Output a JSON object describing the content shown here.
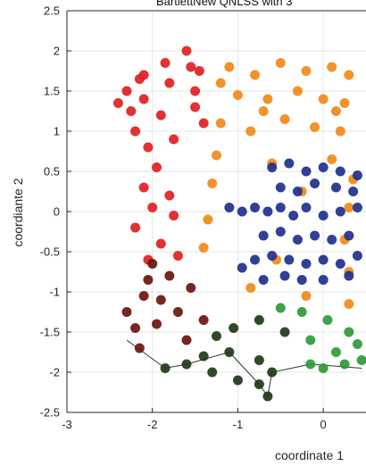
{
  "chart_data": {
    "type": "scatter",
    "title": "BartlettNew QNLSS with 3",
    "xlabel": "coordinate 1",
    "ylabel": "coordiante 2",
    "xlim": [
      -3,
      0.5
    ],
    "ylim": [
      -2.5,
      2.5
    ],
    "x_ticks": [
      -3,
      -2,
      -1,
      0
    ],
    "y_ticks": [
      -2.5,
      -2,
      -1.5,
      -1,
      -0.5,
      0,
      0.5,
      1,
      1.5,
      2,
      2.5
    ],
    "x_tick_labels": [
      "-3",
      "-2",
      "-1",
      "0"
    ],
    "y_tick_labels": [
      "-2.5",
      "-2",
      "-1.5",
      "-1",
      "-0.5",
      "0",
      "0.5",
      "1",
      "1.5",
      "2",
      "2.5"
    ],
    "grid": true,
    "colors": {
      "red": "#e02020",
      "orange": "#f08a18",
      "dark_red": "#6a1410",
      "dark_green": "#1e3a16",
      "green": "#2f9a38",
      "navy": "#1f2f8c",
      "outline": "#333333"
    },
    "series": [
      {
        "color": "#e02020",
        "points": [
          [
            -1.6,
            2
          ],
          [
            -1.85,
            1.85
          ],
          [
            -2.1,
            1.7
          ],
          [
            -2.3,
            1.5
          ],
          [
            -2.1,
            1.4
          ],
          [
            -1.8,
            1.6
          ],
          [
            -1.5,
            1.5
          ],
          [
            -1.9,
            1.2
          ],
          [
            -2.2,
            1.0
          ],
          [
            -2.05,
            0.8
          ],
          [
            -1.75,
            0.9
          ],
          [
            -1.4,
            1.1
          ],
          [
            -1.55,
            1.8
          ],
          [
            -2.25,
            1.25
          ],
          [
            -1.95,
            0.55
          ],
          [
            -2.1,
            0.3
          ],
          [
            -1.8,
            0.2
          ],
          [
            -2.0,
            0.05
          ],
          [
            -2.2,
            -0.2
          ],
          [
            -1.75,
            -0.05
          ],
          [
            -1.9,
            -0.4
          ],
          [
            -2.05,
            -0.6
          ],
          [
            -1.7,
            -0.55
          ],
          [
            -1.5,
            1.3
          ],
          [
            -2.4,
            1.35
          ],
          [
            -1.45,
            1.75
          ],
          [
            -2.15,
            1.65
          ]
        ]
      },
      {
        "color": "#f08a18",
        "points": [
          [
            -1.1,
            1.8
          ],
          [
            -0.8,
            1.7
          ],
          [
            -0.5,
            1.85
          ],
          [
            -0.2,
            1.75
          ],
          [
            0.1,
            1.8
          ],
          [
            0.3,
            1.7
          ],
          [
            -1.0,
            1.45
          ],
          [
            -0.65,
            1.4
          ],
          [
            -0.3,
            1.5
          ],
          [
            0.0,
            1.4
          ],
          [
            0.25,
            1.35
          ],
          [
            -1.2,
            1.1
          ],
          [
            -0.85,
            1.0
          ],
          [
            -0.45,
            1.15
          ],
          [
            -0.1,
            1.05
          ],
          [
            0.2,
            1.0
          ],
          [
            -1.25,
            0.7
          ],
          [
            -0.6,
            0.6
          ],
          [
            0.1,
            0.65
          ],
          [
            0.35,
            0.4
          ],
          [
            -1.3,
            0.35
          ],
          [
            -0.25,
            0.25
          ],
          [
            0.3,
            0.05
          ],
          [
            -1.35,
            -0.1
          ],
          [
            0.25,
            -0.35
          ],
          [
            -0.55,
            -0.6
          ],
          [
            0.3,
            -0.75
          ],
          [
            -1.4,
            -0.45
          ],
          [
            -0.85,
            -0.95
          ],
          [
            -0.2,
            -1.05
          ],
          [
            0.3,
            -1.15
          ],
          [
            -1.2,
            1.6
          ],
          [
            -0.7,
            1.25
          ],
          [
            0.15,
            1.25
          ]
        ]
      },
      {
        "color": "#6a1410",
        "points": [
          [
            -2.3,
            -1.25
          ],
          [
            -2.1,
            -1.05
          ],
          [
            -1.9,
            -1.1
          ],
          [
            -2.2,
            -1.45
          ],
          [
            -1.95,
            -1.4
          ],
          [
            -1.7,
            -1.25
          ],
          [
            -1.55,
            -0.95
          ],
          [
            -1.8,
            -0.8
          ],
          [
            -2.05,
            -0.85
          ],
          [
            -2.15,
            -1.7
          ],
          [
            -1.6,
            -1.6
          ],
          [
            -1.4,
            -1.35
          ],
          [
            -2.0,
            -0.65
          ]
        ]
      },
      {
        "color": "#1e3a16",
        "points": [
          [
            -1.85,
            -1.95
          ],
          [
            -1.6,
            -1.9
          ],
          [
            -1.4,
            -1.8
          ],
          [
            -1.1,
            -1.75
          ],
          [
            -1.0,
            -2.1
          ],
          [
            -0.75,
            -2.15
          ],
          [
            -0.6,
            -2.0
          ],
          [
            -0.75,
            -1.85
          ],
          [
            -1.25,
            -1.55
          ],
          [
            -1.05,
            -1.45
          ],
          [
            -0.75,
            -1.35
          ],
          [
            -0.45,
            -1.5
          ],
          [
            -1.3,
            -2.0
          ],
          [
            -0.65,
            -2.3
          ]
        ]
      },
      {
        "color": "#2f9a38",
        "points": [
          [
            -0.25,
            -1.25
          ],
          [
            0.05,
            -1.35
          ],
          [
            0.3,
            -1.5
          ],
          [
            -0.15,
            -1.6
          ],
          [
            0.15,
            -1.75
          ],
          [
            0.4,
            -1.65
          ],
          [
            -0.5,
            -1.2
          ],
          [
            0.0,
            -1.95
          ],
          [
            0.25,
            -1.9
          ],
          [
            -0.15,
            -1.9
          ],
          [
            0.45,
            -1.85
          ]
        ]
      },
      {
        "color": "#1f2f8c",
        "points": [
          [
            -0.6,
            0.55
          ],
          [
            -0.4,
            0.6
          ],
          [
            -0.2,
            0.5
          ],
          [
            0.0,
            0.55
          ],
          [
            0.2,
            0.5
          ],
          [
            0.4,
            0.45
          ],
          [
            -0.5,
            0.3
          ],
          [
            -0.3,
            0.25
          ],
          [
            -0.1,
            0.35
          ],
          [
            0.15,
            0.3
          ],
          [
            0.35,
            0.25
          ],
          [
            -1.1,
            0.05
          ],
          [
            -0.95,
            0.0
          ],
          [
            -0.8,
            0.05
          ],
          [
            -0.65,
            0.0
          ],
          [
            -0.5,
            0.05
          ],
          [
            -0.35,
            -0.05
          ],
          [
            -0.2,
            0.05
          ],
          [
            0.0,
            -0.05
          ],
          [
            0.2,
            0.0
          ],
          [
            0.4,
            0.05
          ],
          [
            -0.7,
            -0.3
          ],
          [
            -0.5,
            -0.25
          ],
          [
            -0.3,
            -0.35
          ],
          [
            -0.1,
            -0.3
          ],
          [
            0.1,
            -0.35
          ],
          [
            0.3,
            -0.3
          ],
          [
            -0.8,
            -0.6
          ],
          [
            -0.6,
            -0.55
          ],
          [
            -0.4,
            -0.6
          ],
          [
            -0.2,
            -0.65
          ],
          [
            0.0,
            -0.6
          ],
          [
            0.2,
            -0.65
          ],
          [
            0.4,
            -0.55
          ],
          [
            -0.7,
            -0.85
          ],
          [
            -0.45,
            -0.8
          ],
          [
            -0.25,
            -0.85
          ],
          [
            0.0,
            -0.85
          ],
          [
            0.3,
            -0.8
          ],
          [
            -0.95,
            -0.7
          ]
        ]
      }
    ],
    "outline_points": [
      [
        -2.3,
        -1.6
      ],
      [
        -1.85,
        -1.95
      ],
      [
        -1.6,
        -1.9
      ],
      [
        -1.1,
        -1.75
      ],
      [
        -0.75,
        -2.15
      ],
      [
        -0.65,
        -2.3
      ],
      [
        -0.6,
        -2.0
      ],
      [
        -0.15,
        -1.9
      ],
      [
        0.45,
        -1.95
      ]
    ]
  }
}
